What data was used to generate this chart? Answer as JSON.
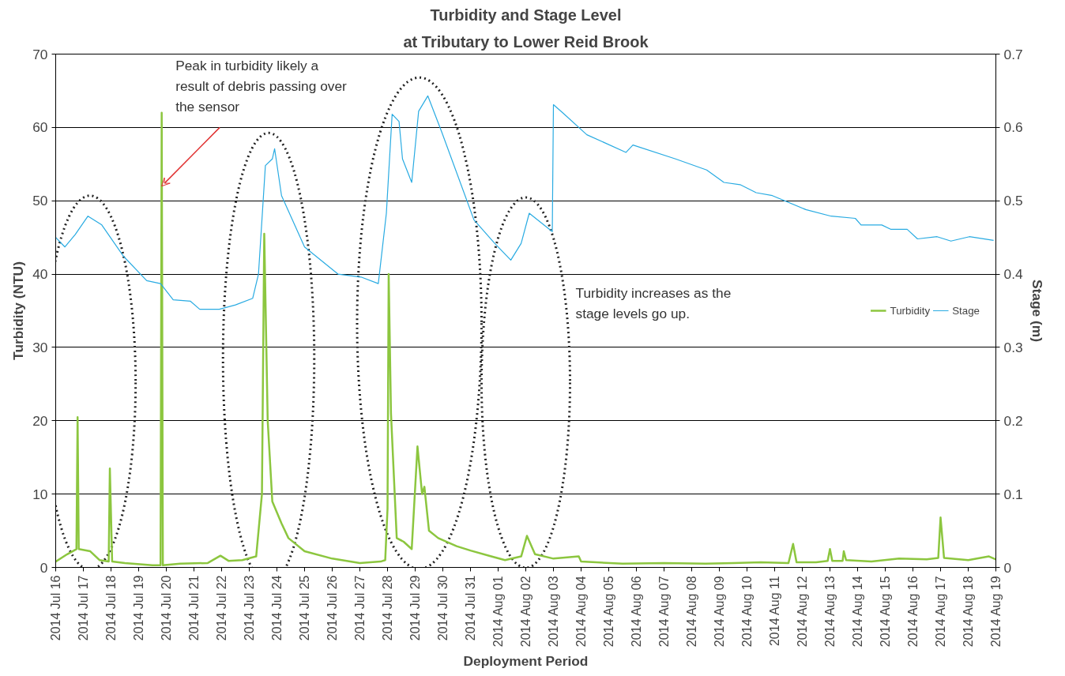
{
  "chart_data": {
    "type": "line",
    "title": "Turbidity and Stage Level",
    "subtitle": "at Tributary to Lower Reid Brook",
    "xlabel": "Deployment Period",
    "ylabel": "Turbidity (NTU)",
    "y2label": "Stage (m)",
    "annotations": [
      {
        "text": "Peak in turbidity likely a result of debris passing over the sensor",
        "x": "2014-07-19T20:00",
        "y": 52
      },
      "Turbidity increases as the stage levels go up."
    ],
    "series": [
      {
        "name": "Turbidity",
        "color": "#8cc63f",
        "x": [
          "2014-07-16T00:00",
          "2014-07-16T10:00",
          "2014-07-16T18:00",
          "2014-07-16T19:00",
          "2014-07-16T20:00",
          "2014-07-17T06:00",
          "2014-07-17T14:00",
          "2014-07-17T22:00",
          "2014-07-17T23:00",
          "2014-07-18T01:00",
          "2014-07-18T12:00",
          "2014-07-19T12:00",
          "2014-07-19T19:00",
          "2014-07-19T20:00",
          "2014-07-19T21:00",
          "2014-07-20T12:00",
          "2014-07-21T12:00",
          "2014-07-21T23:00",
          "2014-07-22T06:00",
          "2014-07-22T18:00",
          "2014-07-23T06:00",
          "2014-07-23T11:00",
          "2014-07-23T13:00",
          "2014-07-23T16:00",
          "2014-07-23T20:00",
          "2014-07-24T04:00",
          "2014-07-24T10:00",
          "2014-07-25T00:00",
          "2014-07-26T00:00",
          "2014-07-27T00:00",
          "2014-07-27T18:00",
          "2014-07-27T22:00",
          "2014-07-28T00:00",
          "2014-07-28T01:00",
          "2014-07-28T03:00",
          "2014-07-28T08:00",
          "2014-07-28T14:00",
          "2014-07-28T21:00",
          "2014-07-29T02:00",
          "2014-07-29T06:00",
          "2014-07-29T08:00",
          "2014-07-29T12:00",
          "2014-07-29T20:00",
          "2014-07-30T12:00",
          "2014-07-31T00:00",
          "2014-07-31T18:00",
          "2014-08-01T06:00",
          "2014-08-01T20:00",
          "2014-08-02T01:00",
          "2014-08-02T08:00",
          "2014-08-03T00:00",
          "2014-08-03T22:00",
          "2014-08-04T00:00",
          "2014-08-05T12:00",
          "2014-08-07T00:00",
          "2014-08-08T12:00",
          "2014-08-09T12:00",
          "2014-08-10T12:00",
          "2014-08-11T12:00",
          "2014-08-11T16:00",
          "2014-08-11T19:00",
          "2014-08-12T12:00",
          "2014-08-12T22:00",
          "2014-08-13T00:00",
          "2014-08-13T02:00",
          "2014-08-13T11:00",
          "2014-08-13T12:00",
          "2014-08-13T14:00",
          "2014-08-14T12:00",
          "2014-08-15T12:00",
          "2014-08-16T12:00",
          "2014-08-16T22:00",
          "2014-08-17T00:00",
          "2014-08-17T03:00",
          "2014-08-18T00:00",
          "2014-08-18T18:00",
          "2014-08-19T00:00"
        ],
        "values": [
          0.8,
          1.8,
          2.5,
          20.5,
          2.5,
          2.2,
          1.0,
          0.8,
          13.5,
          0.8,
          0.6,
          0.3,
          0.3,
          62,
          0.3,
          0.5,
          0.6,
          1.6,
          0.9,
          1.0,
          1.5,
          10,
          45.5,
          20,
          9,
          6,
          4,
          2.2,
          1.2,
          0.6,
          0.8,
          1.0,
          8,
          40,
          21,
          4,
          3.5,
          2.5,
          16.5,
          10,
          11,
          5,
          4,
          2.9,
          2.3,
          1.5,
          1.0,
          1.5,
          4.3,
          1.8,
          1.2,
          1.5,
          0.8,
          0.5,
          0.6,
          0.5,
          0.6,
          0.7,
          0.6,
          3.2,
          0.7,
          0.7,
          0.9,
          2.5,
          0.9,
          0.9,
          2.2,
          1.0,
          0.8,
          1.2,
          1.1,
          1.3,
          6.8,
          1.3,
          1.0,
          1.5,
          1.1
        ]
      },
      {
        "name": "Stage",
        "color": "#29abe2",
        "axis": "y2",
        "x": [
          "2014-07-16T00:00",
          "2014-07-16T08:00",
          "2014-07-16T17:00",
          "2014-07-17T04:00",
          "2014-07-17T16:00",
          "2014-07-18T11:00",
          "2014-07-19T07:00",
          "2014-07-19T19:00",
          "2014-07-20T06:00",
          "2014-07-20T21:00",
          "2014-07-21T05:00",
          "2014-07-21T22:00",
          "2014-07-22T12:00",
          "2014-07-23T03:00",
          "2014-07-23T08:00",
          "2014-07-23T14:00",
          "2014-07-23T20:00",
          "2014-07-23T22:00",
          "2014-07-24T04:00",
          "2014-07-25T00:00",
          "2014-07-26T05:00",
          "2014-07-27T01:00",
          "2014-07-27T16:00",
          "2014-07-27T23:00",
          "2014-07-28T04:00",
          "2014-07-28T10:00",
          "2014-07-28T13:00",
          "2014-07-28T21:00",
          "2014-07-29T03:00",
          "2014-07-29T11:00",
          "2014-07-29T23:00",
          "2014-07-31T03:00",
          "2014-07-31T21:00",
          "2014-08-01T11:00",
          "2014-08-01T20:00",
          "2014-08-02T03:00",
          "2014-08-02T23:00",
          "2014-08-03T00:00",
          "2014-08-03T08:00",
          "2014-08-04T05:00",
          "2014-08-05T15:00",
          "2014-08-05T21:00",
          "2014-08-07T10:00",
          "2014-08-08T13:00",
          "2014-08-09T04:00",
          "2014-08-09T18:00",
          "2014-08-10T08:00",
          "2014-08-10T22:00",
          "2014-08-12T03:00",
          "2014-08-13T01:00",
          "2014-08-13T22:00",
          "2014-08-14T03:00",
          "2014-08-14T21:00",
          "2014-08-15T05:00",
          "2014-08-15T19:00",
          "2014-08-16T04:00",
          "2014-08-16T21:00",
          "2014-08-17T09:00",
          "2014-08-18T01:00",
          "2014-08-18T22:00"
        ],
        "values": [
          0.45,
          0.437,
          0.454,
          0.479,
          0.467,
          0.424,
          0.391,
          0.387,
          0.365,
          0.363,
          0.352,
          0.352,
          0.358,
          0.367,
          0.4,
          0.548,
          0.557,
          0.571,
          0.507,
          0.437,
          0.4,
          0.396,
          0.387,
          0.483,
          0.618,
          0.608,
          0.557,
          0.525,
          0.622,
          0.643,
          0.594,
          0.474,
          0.442,
          0.419,
          0.442,
          0.483,
          0.458,
          0.631,
          0.62,
          0.59,
          0.566,
          0.576,
          0.557,
          0.542,
          0.525,
          0.522,
          0.511,
          0.507,
          0.488,
          0.479,
          0.476,
          0.467,
          0.467,
          0.461,
          0.461,
          0.448,
          0.451,
          0.445,
          0.451,
          0.446
        ]
      }
    ],
    "xlim": [
      "2014-07-16",
      "2014-08-19"
    ],
    "xticks": [
      {
        "value": "2014-07-16",
        "label": "2014 Jul 16"
      },
      {
        "value": "2014-07-17",
        "label": "2014 Jul 17"
      },
      {
        "value": "2014-07-18",
        "label": "2014 Jul 18"
      },
      {
        "value": "2014-07-19",
        "label": "2014 Jul 19"
      },
      {
        "value": "2014-07-20",
        "label": "2014 Jul 20"
      },
      {
        "value": "2014-07-21",
        "label": "2014 Jul 21"
      },
      {
        "value": "2014-07-22",
        "label": "2014 Jul 22"
      },
      {
        "value": "2014-07-23",
        "label": "2014 Jul 23"
      },
      {
        "value": "2014-07-24",
        "label": "2014 Jul 24"
      },
      {
        "value": "2014-07-25",
        "label": "2014 Jul 25"
      },
      {
        "value": "2014-07-26",
        "label": "2014 Jul 26"
      },
      {
        "value": "2014-07-27",
        "label": "2014 Jul 27"
      },
      {
        "value": "2014-07-28",
        "label": "2014 Jul 28"
      },
      {
        "value": "2014-07-29",
        "label": "2014 Jul 29"
      },
      {
        "value": "2014-07-30",
        "label": "2014 Jul 30"
      },
      {
        "value": "2014-07-31",
        "label": "2014 Jul 31"
      },
      {
        "value": "2014-08-01",
        "label": "2014 Aug 01"
      },
      {
        "value": "2014-08-02",
        "label": "2014 Aug 02"
      },
      {
        "value": "2014-08-03",
        "label": "2014 Aug 03"
      },
      {
        "value": "2014-08-04",
        "label": "2014 Aug 04"
      },
      {
        "value": "2014-08-05",
        "label": "2014 Aug 05"
      },
      {
        "value": "2014-08-06",
        "label": "2014 Aug 06"
      },
      {
        "value": "2014-08-07",
        "label": "2014 Aug 07"
      },
      {
        "value": "2014-08-08",
        "label": "2014 Aug 08"
      },
      {
        "value": "2014-08-09",
        "label": "2014 Aug 09"
      },
      {
        "value": "2014-08-10",
        "label": "2014 Aug 10"
      },
      {
        "value": "2014-08-11",
        "label": "2014 Aug 11"
      },
      {
        "value": "2014-08-12",
        "label": "2014 Aug 12"
      },
      {
        "value": "2014-08-13",
        "label": "2014 Aug 13"
      },
      {
        "value": "2014-08-14",
        "label": "2014 Aug 14"
      },
      {
        "value": "2014-08-15",
        "label": "2014 Aug 15"
      },
      {
        "value": "2014-08-16",
        "label": "2014 Aug 16"
      },
      {
        "value": "2014-08-17",
        "label": "2014 Aug 17"
      },
      {
        "value": "2014-08-18",
        "label": "2014 Aug 18"
      },
      {
        "value": "2014-08-19",
        "label": "2014 Aug 19"
      }
    ],
    "ylim": [
      0,
      70
    ],
    "yticks": [
      0,
      10,
      20,
      30,
      40,
      50,
      60,
      70
    ],
    "y2lim": [
      0,
      0.7
    ],
    "y2ticks": [
      0,
      0.1,
      0.2,
      0.3,
      0.4,
      0.5,
      0.6,
      0.7
    ],
    "grid": "y",
    "legend": "right"
  }
}
